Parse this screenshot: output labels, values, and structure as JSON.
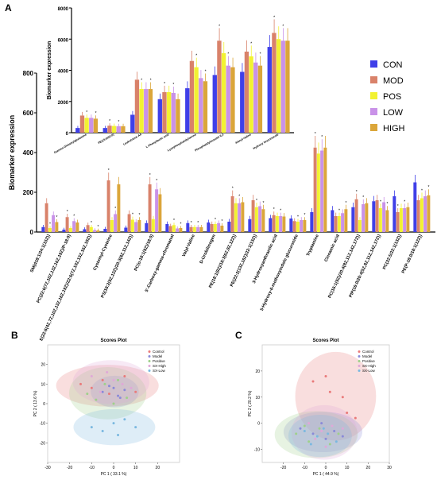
{
  "panels": {
    "A": "A",
    "B": "B",
    "C": "C"
  },
  "colors": {
    "CON": "#3f3fe8",
    "MOD": "#d9826a",
    "POS": "#f2f232",
    "LOW": "#c992e8",
    "HIGH": "#dba63a"
  },
  "legend": [
    "CON",
    "MOD",
    "POS",
    "LOW",
    "HIGH"
  ],
  "chart_data": [
    {
      "id": "A-main",
      "type": "bar",
      "ylabel": "Biomarker expression",
      "ylim": [
        0,
        800
      ],
      "yticks": [
        0,
        200,
        400,
        600,
        800
      ],
      "grid": false,
      "legend_position": "right",
      "categories": [
        "SM(d18:1/24:1(15Z))",
        "PC(22:6(7Z,10Z,13Z,16Z,19Z)/P-18:0)",
        "E(22:6(4Z,7Z,10Z,13Z,16Z,19Z)/22:6(7Z,10Z,13Z,16Z,19Z))",
        "Cysteinyl-Cysteine",
        "PS(18:2(9Z,12Z)/20:3(8Z,11Z,14Z))",
        "PC(o-18:1(9Z)/18:0)",
        "5'-Carboxy-gamma-chromanol",
        "Valyl-Valine",
        "D-Urobilinogen",
        "PE(18:1(9Z)/18:3(6Z,9Z,12Z))",
        "PE(22:2(13Z,16Z)/22:1(13Z))",
        "3-Hydroxyanthranilic acid",
        "5-Hydroxy-6-methoxyindole glucuronide",
        "Tryptamine",
        "Cinnamic acid",
        "PC(16:1(9Z)/20:4(8Z,11Z,14Z,17Z))",
        "PIP(16:0/20:4(5Z,8Z,11Z,14Z,17Z))",
        "PC(22:5/22:1(13Z))",
        "PE(P-18:0/18:1(12Z))"
      ],
      "series": [
        {
          "name": "CON",
          "values": [
            25,
            12,
            14,
            16,
            22,
            45,
            40,
            45,
            48,
            52,
            65,
            70,
            68,
            100,
            110,
            125,
            155,
            180,
            250
          ]
        },
        {
          "name": "MOD",
          "values": [
            145,
            75,
            35,
            260,
            90,
            240,
            30,
            25,
            40,
            180,
            160,
            85,
            55,
            425,
            80,
            165,
            160,
            100,
            160
          ]
        },
        {
          "name": "POS",
          "values": [
            20,
            20,
            25,
            60,
            62,
            65,
            35,
            25,
            40,
            145,
            125,
            80,
            52,
            395,
            80,
            60,
            120,
            120,
            170
          ]
        },
        {
          "name": "LOW",
          "values": [
            85,
            55,
            10,
            90,
            50,
            215,
            18,
            25,
            45,
            145,
            130,
            80,
            60,
            410,
            95,
            140,
            150,
            120,
            180
          ]
        },
        {
          "name": "HIGH",
          "values": [
            50,
            48,
            8,
            240,
            60,
            190,
            20,
            25,
            32,
            150,
            115,
            78,
            60,
            425,
            115,
            145,
            110,
            125,
            185
          ]
        }
      ]
    },
    {
      "id": "A-inset",
      "type": "bar",
      "ylabel": "Biomarker expression",
      "ylim": [
        0,
        8000
      ],
      "yticks": [
        0,
        2000,
        4000,
        6000,
        8000
      ],
      "categories": [
        "Gamma-Glutamylglutamine",
        "PE(15:0/20:0)",
        "Leukotriene A4",
        "L-Phenyllactic acid",
        "Lysophosphatidylserine",
        "Phosphatidylinositol 6,3",
        "Alanyl-Valine",
        "Hydroxy Itraconazole"
      ],
      "series": [
        {
          "name": "CON",
          "values": [
            300,
            300,
            1150,
            2150,
            2850,
            3700,
            3900,
            5500
          ]
        },
        {
          "name": "MOD",
          "values": [
            1100,
            450,
            3400,
            2600,
            4600,
            5900,
            5200,
            6400
          ]
        },
        {
          "name": "POS",
          "values": [
            950,
            430,
            2800,
            2600,
            4200,
            5100,
            4900,
            6000
          ]
        },
        {
          "name": "LOW",
          "values": [
            950,
            420,
            2800,
            2550,
            3500,
            4300,
            4500,
            5900
          ]
        },
        {
          "name": "HIGH",
          "values": [
            900,
            420,
            2800,
            2150,
            3300,
            4200,
            4300,
            5900
          ]
        }
      ]
    },
    {
      "id": "B",
      "type": "scatter",
      "title": "Scores Plot",
      "xlabel": "PC 1 ( 33.1 %)",
      "ylabel": "PC 2 ( 13.6 %)",
      "xlim": [
        -30,
        30
      ],
      "ylim": [
        -30,
        30
      ],
      "xticks": [
        -30,
        -20,
        -10,
        0,
        10,
        20
      ],
      "yticks": [
        -20,
        -10,
        0,
        10,
        20
      ],
      "legend": [
        "Control",
        "Model",
        "Positive",
        "SX-High",
        "SX-Low"
      ],
      "series": [
        {
          "name": "Control",
          "color": "#e97a7a",
          "points": [
            [
              -15,
              10
            ],
            [
              -10,
              8
            ],
            [
              -5,
              12
            ],
            [
              5,
              14
            ],
            [
              10,
              6
            ],
            [
              -2,
              5
            ]
          ]
        },
        {
          "name": "Model",
          "color": "#8a8ad8",
          "points": [
            [
              -5,
              6
            ],
            [
              0,
              8
            ],
            [
              2,
              4
            ],
            [
              5,
              7
            ],
            [
              -2,
              9
            ],
            [
              3,
              3
            ]
          ]
        },
        {
          "name": "Positive",
          "color": "#9ed08a",
          "points": [
            [
              -12,
              5
            ],
            [
              -8,
              2
            ],
            [
              -4,
              10
            ],
            [
              2,
              12
            ],
            [
              0,
              0
            ],
            [
              6,
              3
            ]
          ]
        },
        {
          "name": "SX-High",
          "color": "#e0a8d8",
          "points": [
            [
              -10,
              14
            ],
            [
              -3,
              16
            ],
            [
              4,
              10
            ],
            [
              8,
              8
            ],
            [
              0,
              12
            ],
            [
              -6,
              6
            ]
          ]
        },
        {
          "name": "SX-Low",
          "color": "#7ab8e0",
          "points": [
            [
              -10,
              -12
            ],
            [
              -5,
              -14
            ],
            [
              0,
              -10
            ],
            [
              5,
              -8
            ],
            [
              10,
              -12
            ],
            [
              2,
              -16
            ]
          ]
        }
      ]
    },
    {
      "id": "C",
      "type": "scatter",
      "title": "Scores Plot",
      "xlabel": "PC 1 ( 44.9 %)",
      "ylabel": "PC 2 ( 20.2 %)",
      "xlim": [
        -30,
        30
      ],
      "ylim": [
        -15,
        30
      ],
      "xticks": [
        -20,
        -10,
        0,
        10,
        20,
        30
      ],
      "yticks": [
        -10,
        0,
        10,
        20
      ],
      "legend": [
        "Control",
        "Model",
        "Positive",
        "SX-High",
        "SX-Low"
      ],
      "series": [
        {
          "name": "Control",
          "color": "#e97a7a",
          "points": [
            [
              -6,
              16
            ],
            [
              0,
              18
            ],
            [
              2,
              12
            ],
            [
              8,
              10
            ],
            [
              10,
              4
            ],
            [
              14,
              2
            ]
          ]
        },
        {
          "name": "Model",
          "color": "#8a8ad8",
          "points": [
            [
              -12,
              -2
            ],
            [
              -6,
              -4
            ],
            [
              0,
              -6
            ],
            [
              4,
              -3
            ],
            [
              8,
              -5
            ],
            [
              -2,
              0
            ]
          ]
        },
        {
          "name": "Positive",
          "color": "#9ed08a",
          "points": [
            [
              -14,
              -4
            ],
            [
              -8,
              -7
            ],
            [
              -3,
              -2
            ],
            [
              2,
              -8
            ],
            [
              6,
              -4
            ],
            [
              -10,
              -1
            ]
          ]
        },
        {
          "name": "SX-High",
          "color": "#e0a8d8",
          "points": [
            [
              -8,
              0
            ],
            [
              -2,
              -3
            ],
            [
              3,
              -1
            ],
            [
              8,
              -2
            ],
            [
              -5,
              -6
            ],
            [
              0,
              -9
            ]
          ]
        },
        {
          "name": "SX-Low",
          "color": "#7ab8e0",
          "points": [
            [
              -10,
              -3
            ],
            [
              -4,
              -5
            ],
            [
              1,
              -4
            ],
            [
              5,
              -7
            ],
            [
              -7,
              -8
            ],
            [
              -1,
              -2
            ]
          ]
        }
      ]
    }
  ]
}
